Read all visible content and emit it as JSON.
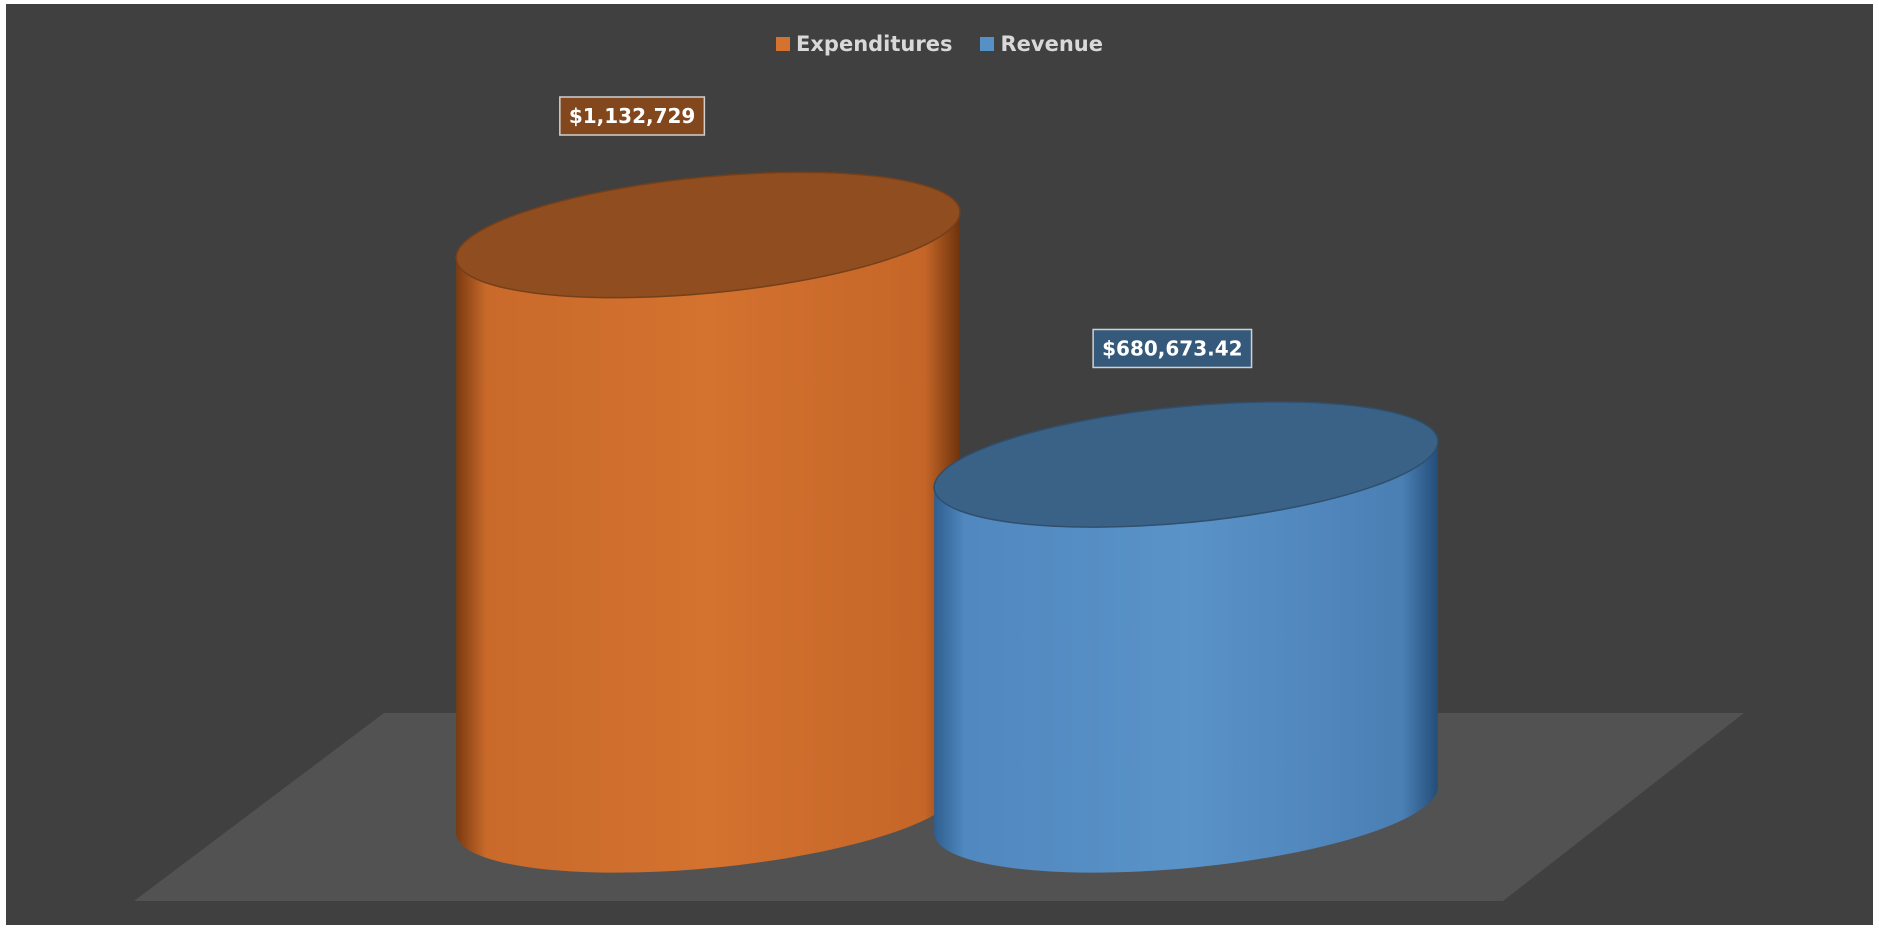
{
  "chart_data": {
    "type": "bar",
    "variant": "3d-cylinder",
    "title": "",
    "xlabel": "",
    "ylabel": "",
    "categories": [
      ""
    ],
    "series": [
      {
        "name": "Expenditures",
        "values": [
          1132729
        ],
        "label": "$1,132,729",
        "color": "#d4722f"
      },
      {
        "name": "Revenue",
        "values": [
          680673.42
        ],
        "label": "$680,673.42",
        "color": "#5590c6"
      }
    ],
    "ylim": [
      0,
      1200000
    ],
    "grid": false,
    "legend_position": "top"
  },
  "colors": {
    "background": "#404040",
    "floor": "#525252",
    "legend_text": "#d9d9d9"
  }
}
